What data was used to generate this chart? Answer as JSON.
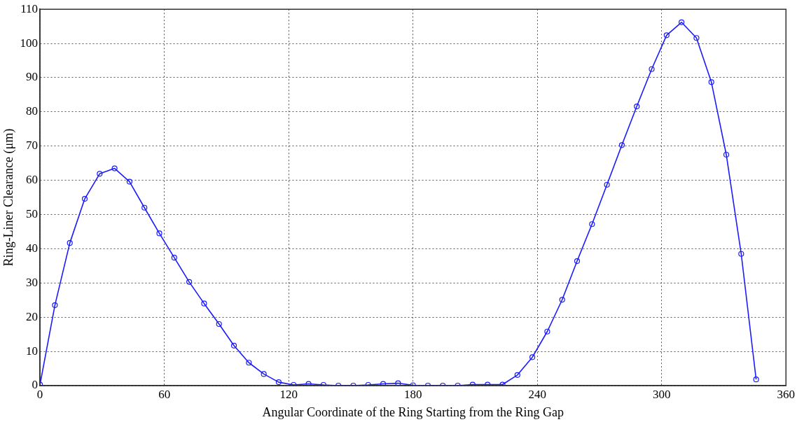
{
  "chart_data": {
    "type": "line",
    "xlabel": "Angular Coordinate of the Ring Starting from the Ring Gap",
    "ylabel": "Ring-Liner Clearance (μm)",
    "x": [
      0,
      7.2,
      14.4,
      21.6,
      28.8,
      36,
      43.2,
      50.4,
      57.6,
      64.8,
      72,
      79.2,
      86.4,
      93.6,
      100.8,
      108,
      115.2,
      122.4,
      129.6,
      136.8,
      144,
      151.2,
      158.4,
      165.6,
      172.8,
      180,
      187.2,
      194.4,
      201.6,
      208.8,
      216,
      223.2,
      230.4,
      237.6,
      244.8,
      252,
      259.2,
      266.4,
      273.6,
      280.8,
      288,
      295.2,
      302.4,
      309.6,
      316.8,
      324,
      331.2,
      338.4,
      345.6
    ],
    "series": [
      {
        "color": "#1a1aff",
        "values": [
          0.3,
          23.5,
          41.7,
          54.6,
          61.9,
          63.5,
          59.6,
          52.0,
          44.5,
          37.4,
          30.3,
          24.0,
          18.0,
          11.7,
          6.7,
          3.4,
          1.0,
          0.2,
          0.5,
          0.2,
          0,
          0,
          0.2,
          0.5,
          0.7,
          0.1,
          0,
          0,
          0,
          0.3,
          0.3,
          0.3,
          3.1,
          8.3,
          15.8,
          25.1,
          36.4,
          47.2,
          58.7,
          70.3,
          81.6,
          92.5,
          102.4,
          106.2,
          101.6,
          88.7,
          67.5,
          38.5,
          1.8
        ]
      }
    ],
    "xlim": [
      0,
      360
    ],
    "xticks": [
      0,
      60,
      120,
      180,
      240,
      300,
      360
    ],
    "ylim": [
      0,
      110
    ],
    "yticks": [
      0,
      10,
      20,
      30,
      40,
      50,
      60,
      70,
      80,
      90,
      100,
      110
    ],
    "grid": true,
    "legend": false,
    "marker": "circle",
    "line_style": "solid"
  }
}
